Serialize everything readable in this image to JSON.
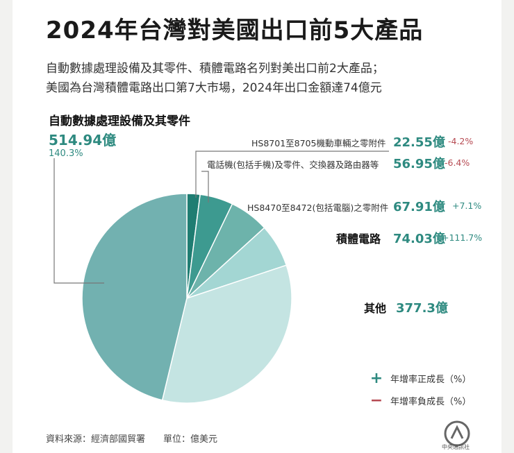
{
  "title": "2024年台灣對美國出口前5大產品",
  "subtitle_lines": [
    "自動數據處理設備及其零件、積體電路名列對美出口前2大產品；",
    "美國為台灣積體電路出口第7大市場，2024年出口金額達74億元"
  ],
  "chart_data": {
    "type": "pie",
    "unit": "億美元",
    "slices": [
      {
        "name": "HS8701至8705機動車輛之零附件",
        "value": 22.55,
        "growth": "-4.2%",
        "color": "#1f7d72"
      },
      {
        "name": "電話機(包括手機)及零件、交換器及路由器等",
        "value": 56.95,
        "growth": "-6.4%",
        "color": "#3d9a90"
      },
      {
        "name": "HS8470至8472(包括電腦)之零附件",
        "value": 67.91,
        "growth": "+7.1%",
        "color": "#6db3ab"
      },
      {
        "name": "積體電路",
        "value": 74.03,
        "growth": "+111.7%",
        "color": "#a3d6d3"
      },
      {
        "name": "其他",
        "value": 377.3,
        "growth": "",
        "color": "#c4e4e2"
      },
      {
        "name": "自動數據處理設備及其零件",
        "value": 514.94,
        "growth": "140.3%",
        "color": "#72b1b0"
      }
    ]
  },
  "labels": {
    "adp_name": "自動數據處理設備及其零件",
    "adp_value": "514.94億",
    "adp_growth": "140.3%",
    "row1_name": "HS8701至8705機動車輛之零附件",
    "row1_value": "22.55億",
    "row1_growth": "-4.2%",
    "row2_name": "電話機(包括手機)及零件、交換器及路由器等",
    "row2_value": "56.95億",
    "row2_growth": "-6.4%",
    "row3_name": "HS8470至8472(包括電腦)之零附件",
    "row3_value": "67.91億",
    "row3_growth": "+7.1%",
    "ic_name": "積體電路",
    "ic_value": "74.03億",
    "ic_growth": "+111.7%",
    "other_name": "其他",
    "other_value": "377.3億"
  },
  "legend": {
    "positive_symbol": "+",
    "positive_label": "年增率正成長（%）",
    "negative_symbol": "−",
    "negative_label": "年增率負成長（%）"
  },
  "footer": "資料來源：經濟部國貿署　　單位：億美元",
  "logo_caption": "中央通訊社",
  "colors": {
    "accent": "#2e8a80",
    "negative": "#b64a52"
  }
}
